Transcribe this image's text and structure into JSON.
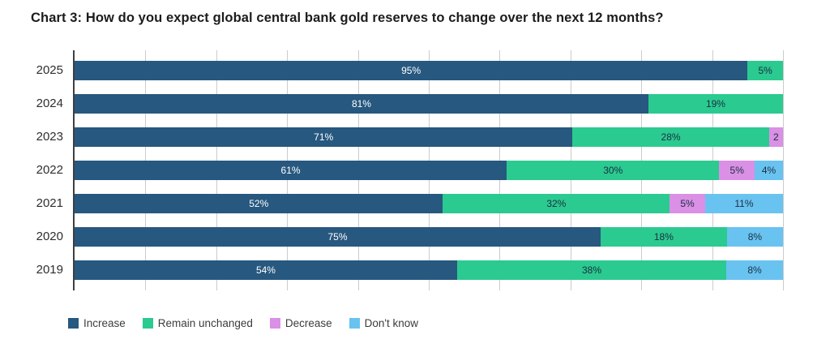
{
  "chart_data": {
    "type": "bar",
    "orientation": "horizontal",
    "stacked": true,
    "title": "Chart 3: How do you expect global central bank gold reserves to change over the next 12 months?",
    "categories": [
      "2025",
      "2024",
      "2023",
      "2022",
      "2021",
      "2020",
      "2019"
    ],
    "series": [
      {
        "key": "increase",
        "name": "Increase",
        "color": "#27587f",
        "label_color": "#ffffff",
        "values": [
          95,
          81,
          71,
          61,
          52,
          75,
          54
        ],
        "labels": [
          "95%",
          "81%",
          "71%",
          "61%",
          "52%",
          "75%",
          "54%"
        ]
      },
      {
        "key": "remain-unchanged",
        "name": "Remain unchanged",
        "color": "#2bca90",
        "label_color": "#1c2e40",
        "values": [
          5,
          19,
          28,
          30,
          32,
          18,
          38
        ],
        "labels": [
          "5%",
          "19%",
          "28%",
          "30%",
          "32%",
          "18%",
          "38%"
        ]
      },
      {
        "key": "decrease",
        "name": "Decrease",
        "color": "#d990e5",
        "label_color": "#1c2e40",
        "values": [
          0,
          0,
          2,
          5,
          5,
          0,
          0
        ],
        "labels": [
          "",
          "",
          "2",
          "5%",
          "5%",
          "",
          ""
        ]
      },
      {
        "key": "dont-know",
        "name": "Don't know",
        "color": "#69c3f1",
        "label_color": "#1c2e40",
        "values": [
          0,
          0,
          0,
          4,
          11,
          8,
          8
        ],
        "labels": [
          "",
          "",
          "",
          "4%",
          "11%",
          "8%",
          "8%"
        ]
      }
    ],
    "x_axis": {
      "min": 0,
      "max": 100,
      "gridline_step": 10,
      "tick_labels_visible": false
    },
    "grid": true,
    "legend_position": "bottom-left",
    "axis_line_color": "#3f3f3f",
    "gridline_color": "#cbcbcb"
  }
}
